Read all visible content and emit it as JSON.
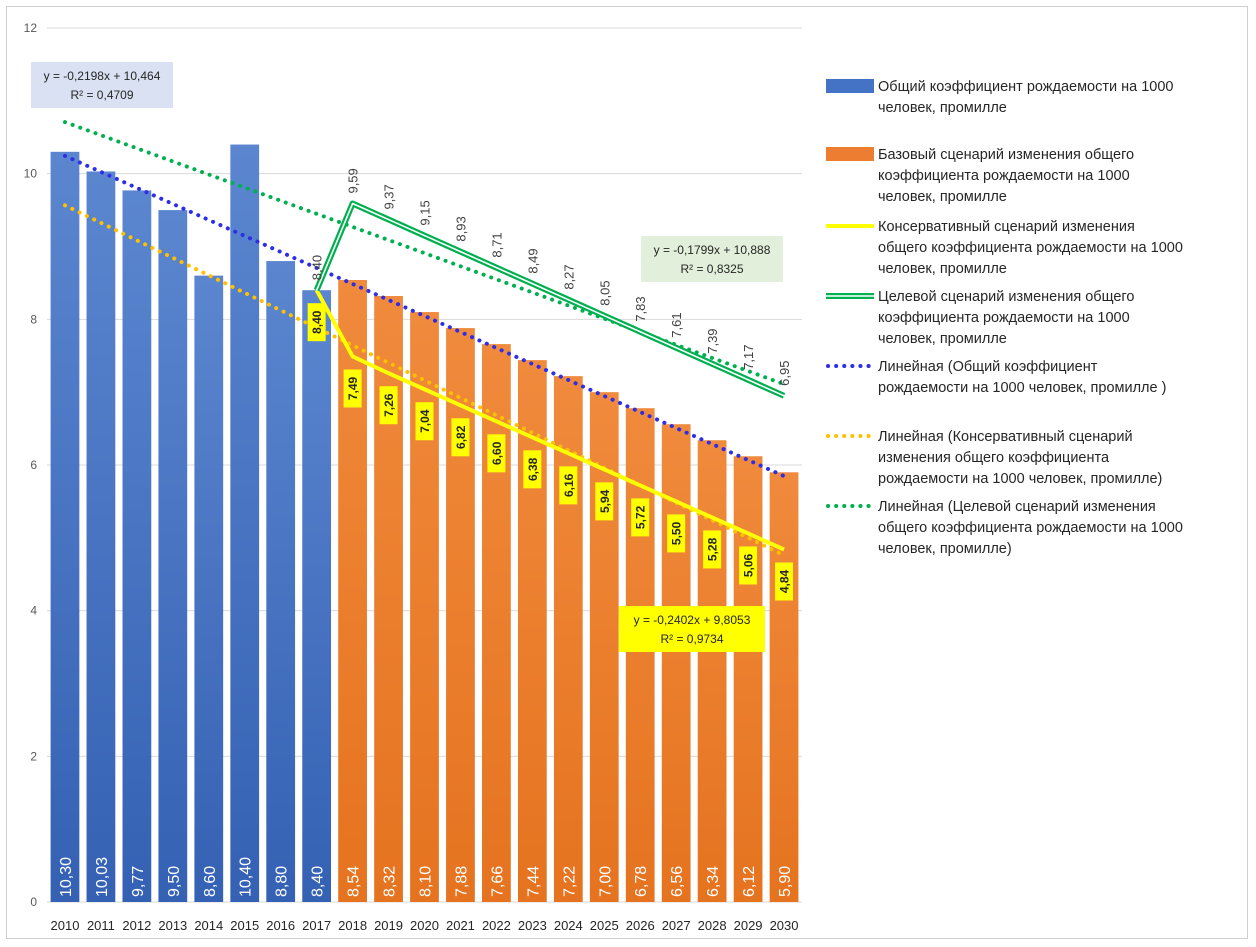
{
  "chart_data": {
    "type": "bar",
    "ylim": [
      0,
      12
    ],
    "yticks": [
      "0",
      "2",
      "4",
      "6",
      "8",
      "10",
      "12"
    ],
    "grid": true,
    "legend_placement": "right",
    "categories": [
      "2010",
      "2011",
      "2012",
      "2013",
      "2014",
      "2015",
      "2016",
      "2017",
      "2018",
      "2019",
      "2020",
      "2021",
      "2022",
      "2023",
      "2024",
      "2025",
      "2026",
      "2027",
      "2028",
      "2029",
      "2030"
    ],
    "series": [
      {
        "name": "Общий коэффициент  рождаемости на 1000 человек, промилле",
        "kind": "bar",
        "color": "#4472C4",
        "x": [
          "2010",
          "2011",
          "2012",
          "2013",
          "2014",
          "2015",
          "2016",
          "2017"
        ],
        "values": [
          10.3,
          10.03,
          9.77,
          9.5,
          8.6,
          10.4,
          8.8,
          8.4
        ],
        "labels": [
          "10,30",
          "10,03",
          "9,77",
          "9,50",
          "8,60",
          "10,40",
          "8,80",
          "8,40"
        ]
      },
      {
        "name": "Базовый сценарий изменения общего коэффициента рождаемости на 1000 человек, промилле",
        "kind": "bar",
        "color": "#ED7D31",
        "x": [
          "2018",
          "2019",
          "2020",
          "2021",
          "2022",
          "2023",
          "2024",
          "2025",
          "2026",
          "2027",
          "2028",
          "2029",
          "2030"
        ],
        "values": [
          8.54,
          8.32,
          8.1,
          7.88,
          7.66,
          7.44,
          7.22,
          7.0,
          6.78,
          6.56,
          6.34,
          6.12,
          5.9
        ],
        "labels": [
          "8,54",
          "8,32",
          "8,10",
          "7,88",
          "7,66",
          "7,44",
          "7,22",
          "7,00",
          "6,78",
          "6,56",
          "6,34",
          "6,12",
          "5,90"
        ]
      },
      {
        "name": "Консервативный сценарий изменения общего коэффициента рождаемости на 1000 человек, промилле",
        "kind": "line",
        "color": "#FFFF00",
        "x": [
          "2017",
          "2018",
          "2019",
          "2020",
          "2021",
          "2022",
          "2023",
          "2024",
          "2025",
          "2026",
          "2027",
          "2028",
          "2029",
          "2030"
        ],
        "values": [
          8.4,
          7.49,
          7.26,
          7.04,
          6.82,
          6.6,
          6.38,
          6.16,
          5.94,
          5.72,
          5.5,
          5.28,
          5.06,
          4.84
        ],
        "labels": [
          "8,40",
          "7,49",
          "7,26",
          "7,04",
          "6,82",
          "6,60",
          "6,38",
          "6,16",
          "5,94",
          "5,72",
          "5,50",
          "5,28",
          "5,06",
          "4,84"
        ]
      },
      {
        "name": "Целевой сценарий изменения общего коэффициента рождаемости на 1000 человек, промилле",
        "kind": "line",
        "color": "#00B050",
        "x": [
          "2017",
          "2018",
          "2019",
          "2020",
          "2021",
          "2022",
          "2023",
          "2024",
          "2025",
          "2026",
          "2027",
          "2028",
          "2029",
          "2030"
        ],
        "values": [
          8.4,
          9.59,
          9.37,
          9.15,
          8.93,
          8.71,
          8.49,
          8.27,
          8.05,
          7.83,
          7.61,
          7.39,
          7.17,
          6.95
        ],
        "labels": [
          "8,40",
          "9,59",
          "9,37",
          "9,15",
          "8,93",
          "8,71",
          "8,49",
          "8,27",
          "8,05",
          "7,83",
          "7,61",
          "7,39",
          "7,17",
          "6,95"
        ]
      }
    ],
    "trendlines": [
      {
        "name": "Линейная (Общий коэффициент  рождаемости на 1000 человек, промилле )",
        "color": "#2E2EE6",
        "slope": -0.2198,
        "intercept": 10.464,
        "x_index_range": [
          0,
          20
        ],
        "equation": "y = -0,2198x + 10,464",
        "r2": "R² = 0,4709",
        "box_color": "#D9E1F2"
      },
      {
        "name": "Линейная (Консервативный сценарий изменения общего коэффициента рождаемости на 1000 человек, промилле)",
        "color": "#FFC000",
        "slope": -0.2402,
        "intercept": 9.8053,
        "x_index_range": [
          0,
          20
        ],
        "equation": "y = -0,2402x + 9,8053",
        "r2": "R² = 0,9734",
        "box_color": "#FFFF00"
      },
      {
        "name": "Линейная (Целевой сценарий изменения общего коэффициента рождаемости на 1000 человек, промилле)",
        "color": "#00B050",
        "slope": -0.1799,
        "intercept": 10.888,
        "x_index_range": [
          0,
          20
        ],
        "equation": "y = -0,1799x + 10,888",
        "r2": "R² = 0,8325",
        "box_color": "#E2EFDA"
      }
    ],
    "legend": [
      {
        "marker": "bar",
        "color": "#4472C4",
        "lines": [
          "Общий коэффициент  рождаемости на 1000",
          "человек, промилле"
        ]
      },
      {
        "marker": "bar",
        "color": "#ED7D31",
        "lines": [
          "Базовый сценарий изменения общего",
          "коэффициента рождаемости на 1000",
          "человек, промилле"
        ]
      },
      {
        "marker": "line",
        "color": "#FFFF00",
        "lines": [
          "Консервативный сценарий изменения",
          "общего коэффициента рождаемости на 1000",
          "человек, промилле"
        ]
      },
      {
        "marker": "line2",
        "color": "#00B050",
        "lines": [
          "Целевой сценарий изменения общего",
          "коэффициента рождаемости на 1000",
          "человек, промилле"
        ]
      },
      {
        "marker": "dots",
        "color": "#2E2EE6",
        "lines": [
          "Линейная (Общий коэффициент",
          "рождаемости на 1000 человек, промилле )"
        ]
      },
      {
        "marker": "dots",
        "color": "#FFC000",
        "lines": [
          "Линейная (Консервативный сценарий",
          "изменения общего коэффициента",
          "рождаемости на 1000 человек, промилле)"
        ]
      },
      {
        "marker": "dots",
        "color": "#00B050",
        "lines": [
          "Линейная (Целевой сценарий изменения",
          "общего коэффициента рождаемости на 1000",
          "человек, промилле)"
        ]
      }
    ]
  }
}
